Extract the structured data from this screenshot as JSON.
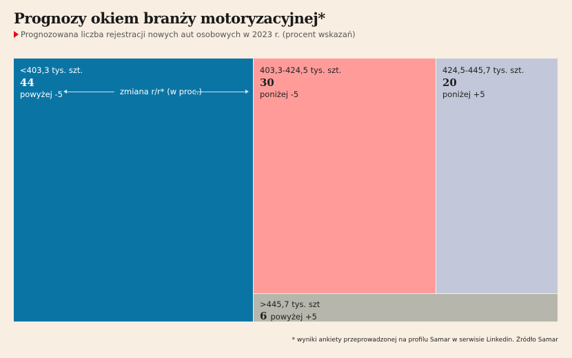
{
  "title": "Prognozy okiem branży motoryzacyjnej*",
  "subtitle": "Prognozowana liczba rejestracji nowych aut osobowych w 2023 r. (procent wskazań)",
  "legend_label": "zmiana r/r* (w proc.)",
  "footnote": "* wyniki ankiety przeprowadzonej na profilu Samar w serwisie Linkedin. Źródło Samar",
  "colors": {
    "tile1": "#0a75a4",
    "tile2": "#ff9c9a",
    "tile3": "#c2c8d9",
    "tile4": "#b6b6ac",
    "background": "#f9eee2"
  },
  "chart_data": {
    "type": "treemap",
    "title": "Prognozy okiem branży motoryzacyjnej*",
    "subtitle": "Prognozowana liczba rejestracji nowych aut osobowych w 2023 r. (procent wskazań)",
    "items": [
      {
        "range": "<403,3 tys. szt.",
        "value": 44,
        "value_label": "44",
        "change": "powyżej -5"
      },
      {
        "range": "403,3-424,5 tys. szt.",
        "value": 30,
        "value_label": "30",
        "change": "poniżej -5"
      },
      {
        "range": "424,5-445,7 tys. szt.",
        "value": 20,
        "value_label": "20",
        "change": "poniżej +5"
      },
      {
        "range": ">445,7 tys. szt",
        "value": 6,
        "value_label": "6",
        "change": "powyżej +5"
      }
    ]
  }
}
